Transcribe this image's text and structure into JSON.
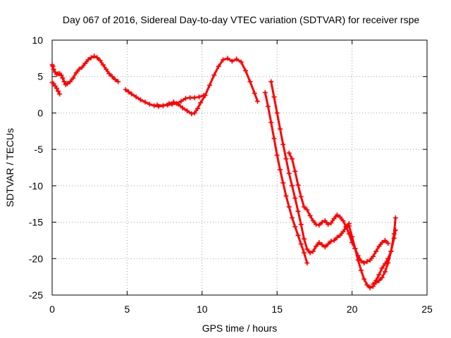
{
  "chart_data": {
    "type": "scatter",
    "title": "Day 067 of 2016, Sidereal Day-to-day VTEC variation (SDTVAR) for receiver rspe",
    "xlabel": "GPS time / hours",
    "ylabel": "SDTVAR / TECUs",
    "xlim": [
      0,
      25
    ],
    "ylim": [
      -25,
      10
    ],
    "x_ticks": [
      0,
      5,
      10,
      15,
      20,
      25
    ],
    "y_ticks": [
      -25,
      -20,
      -15,
      -10,
      -5,
      0,
      5,
      10
    ],
    "x_tick_labels": [
      "0",
      "5",
      "10",
      "15",
      "20",
      "25"
    ],
    "y_tick_labels": [
      "-25",
      "-20",
      "-15",
      "-10",
      "-5",
      "0",
      "5",
      "10"
    ],
    "grid": true,
    "legend": "none",
    "marker": "plus",
    "color": "#ff0000",
    "series": [
      {
        "x": [
          0.0,
          0.05,
          0.1,
          0.2,
          0.3,
          0.4,
          0.5,
          0.6,
          0.7,
          0.8,
          0.9,
          1.0,
          1.2,
          1.4,
          1.6,
          1.8,
          2.0,
          2.2,
          2.4,
          2.6,
          2.8,
          3.0,
          3.2,
          3.4,
          3.6,
          3.8,
          4.0,
          4.2,
          4.4
        ],
        "y": [
          6.6,
          6.4,
          6.0,
          5.6,
          5.3,
          5.4,
          5.4,
          5.2,
          4.8,
          4.3,
          3.9,
          4.0,
          4.3,
          4.8,
          5.5,
          6.0,
          6.3,
          6.8,
          7.3,
          7.6,
          7.8,
          7.6,
          7.2,
          6.6,
          6.0,
          5.4,
          5.0,
          4.6,
          4.3
        ]
      },
      {
        "x": [
          0.0,
          0.1,
          0.2,
          0.3,
          0.4,
          0.5
        ],
        "y": [
          4.2,
          4.0,
          3.7,
          3.4,
          3.0,
          2.6
        ]
      },
      {
        "x": [
          4.9,
          5.1,
          5.3,
          5.6,
          5.9,
          6.2,
          6.5,
          6.8,
          7.1,
          7.4,
          7.7,
          8.0,
          8.3,
          8.6,
          8.9,
          9.2,
          9.5,
          9.8,
          10.1
        ],
        "y": [
          3.2,
          2.9,
          2.6,
          2.2,
          1.8,
          1.5,
          1.2,
          1.0,
          0.9,
          1.0,
          1.1,
          1.2,
          1.3,
          1.6,
          2.0,
          2.1,
          2.1,
          2.2,
          2.4
        ]
      },
      {
        "x": [
          7.0,
          7.4,
          7.8,
          8.1,
          8.4,
          8.7,
          9.0,
          9.3,
          9.5,
          9.7,
          9.9,
          10.2,
          10.5,
          10.8,
          11.1,
          11.4,
          11.7,
          12.0,
          12.3,
          12.6,
          12.9,
          13.2,
          13.5,
          13.7
        ],
        "y": [
          1.1,
          1.0,
          1.3,
          1.5,
          1.2,
          0.7,
          0.3,
          -0.1,
          0.0,
          0.6,
          1.4,
          2.4,
          3.8,
          5.2,
          6.4,
          7.3,
          7.5,
          7.1,
          7.4,
          7.0,
          5.8,
          4.3,
          2.7,
          1.6
        ]
      },
      {
        "x": [
          14.2,
          14.4,
          14.6,
          14.8,
          15.0,
          15.2,
          15.4,
          15.6,
          15.8,
          16.0,
          16.2,
          16.4,
          16.6,
          16.8,
          17.0
        ],
        "y": [
          2.8,
          0.9,
          -1.3,
          -3.5,
          -5.8,
          -7.8,
          -9.6,
          -11.4,
          -12.9,
          -14.4,
          -15.6,
          -16.8,
          -18.0,
          -19.2,
          -20.6
        ]
      },
      {
        "x": [
          14.6,
          14.8,
          15.0,
          15.2,
          15.4,
          15.6,
          15.8,
          16.0,
          16.2,
          16.4,
          16.6,
          16.8,
          17.0,
          17.2,
          17.4,
          17.6,
          17.8,
          18.0,
          18.2,
          18.4,
          18.6,
          18.8,
          19.0,
          19.2,
          19.4,
          19.6,
          19.8
        ],
        "y": [
          4.3,
          2.2,
          0.0,
          -2.2,
          -4.3,
          -6.3,
          -8.3,
          -10.0,
          -11.7,
          -13.5,
          -15.3,
          -17.3,
          -18.7,
          -19.2,
          -19.0,
          -18.3,
          -17.8,
          -18.1,
          -18.4,
          -18.0,
          -17.6,
          -17.5,
          -17.1,
          -16.8,
          -16.3,
          -15.7,
          -15.2
        ]
      },
      {
        "x": [
          15.8,
          16.0,
          16.2,
          16.4,
          16.6,
          16.8,
          17.0,
          17.2,
          17.4,
          17.6,
          17.8,
          18.0,
          18.2,
          18.4,
          18.6,
          18.8,
          19.0,
          19.2,
          19.4,
          19.6,
          19.8,
          20.0,
          20.2,
          20.4,
          20.6,
          20.8,
          21.0,
          21.2,
          21.4,
          21.6,
          21.8,
          22.0,
          22.2,
          22.4
        ],
        "y": [
          -5.5,
          -6.3,
          -8.0,
          -9.9,
          -11.5,
          -12.9,
          -13.3,
          -14.1,
          -14.8,
          -15.3,
          -15.4,
          -15.0,
          -14.8,
          -15.3,
          -15.1,
          -14.5,
          -14.0,
          -14.3,
          -14.8,
          -15.6,
          -16.6,
          -17.8,
          -18.6,
          -19.6,
          -20.3,
          -20.6,
          -20.4,
          -20.2,
          -19.7,
          -19.0,
          -18.3,
          -17.8,
          -17.5,
          -17.9
        ]
      },
      {
        "x": [
          19.8,
          20.0,
          20.2,
          20.4,
          20.6,
          20.8,
          21.0,
          21.2,
          21.4,
          21.6,
          21.8,
          22.0,
          22.2,
          22.4,
          22.6,
          22.8,
          22.9
        ],
        "y": [
          -15.5,
          -17.0,
          -18.6,
          -20.2,
          -21.6,
          -22.8,
          -23.6,
          -24.0,
          -23.8,
          -23.0,
          -22.2,
          -21.3,
          -20.7,
          -20.0,
          -19.0,
          -17.2,
          -16.1
        ]
      },
      {
        "x": [
          21.4,
          21.6,
          21.8,
          22.0,
          22.2,
          22.4,
          22.6,
          22.8,
          22.9
        ],
        "y": [
          -23.5,
          -23.3,
          -23.0,
          -22.6,
          -21.8,
          -20.6,
          -19.0,
          -16.6,
          -14.4
        ]
      }
    ]
  }
}
